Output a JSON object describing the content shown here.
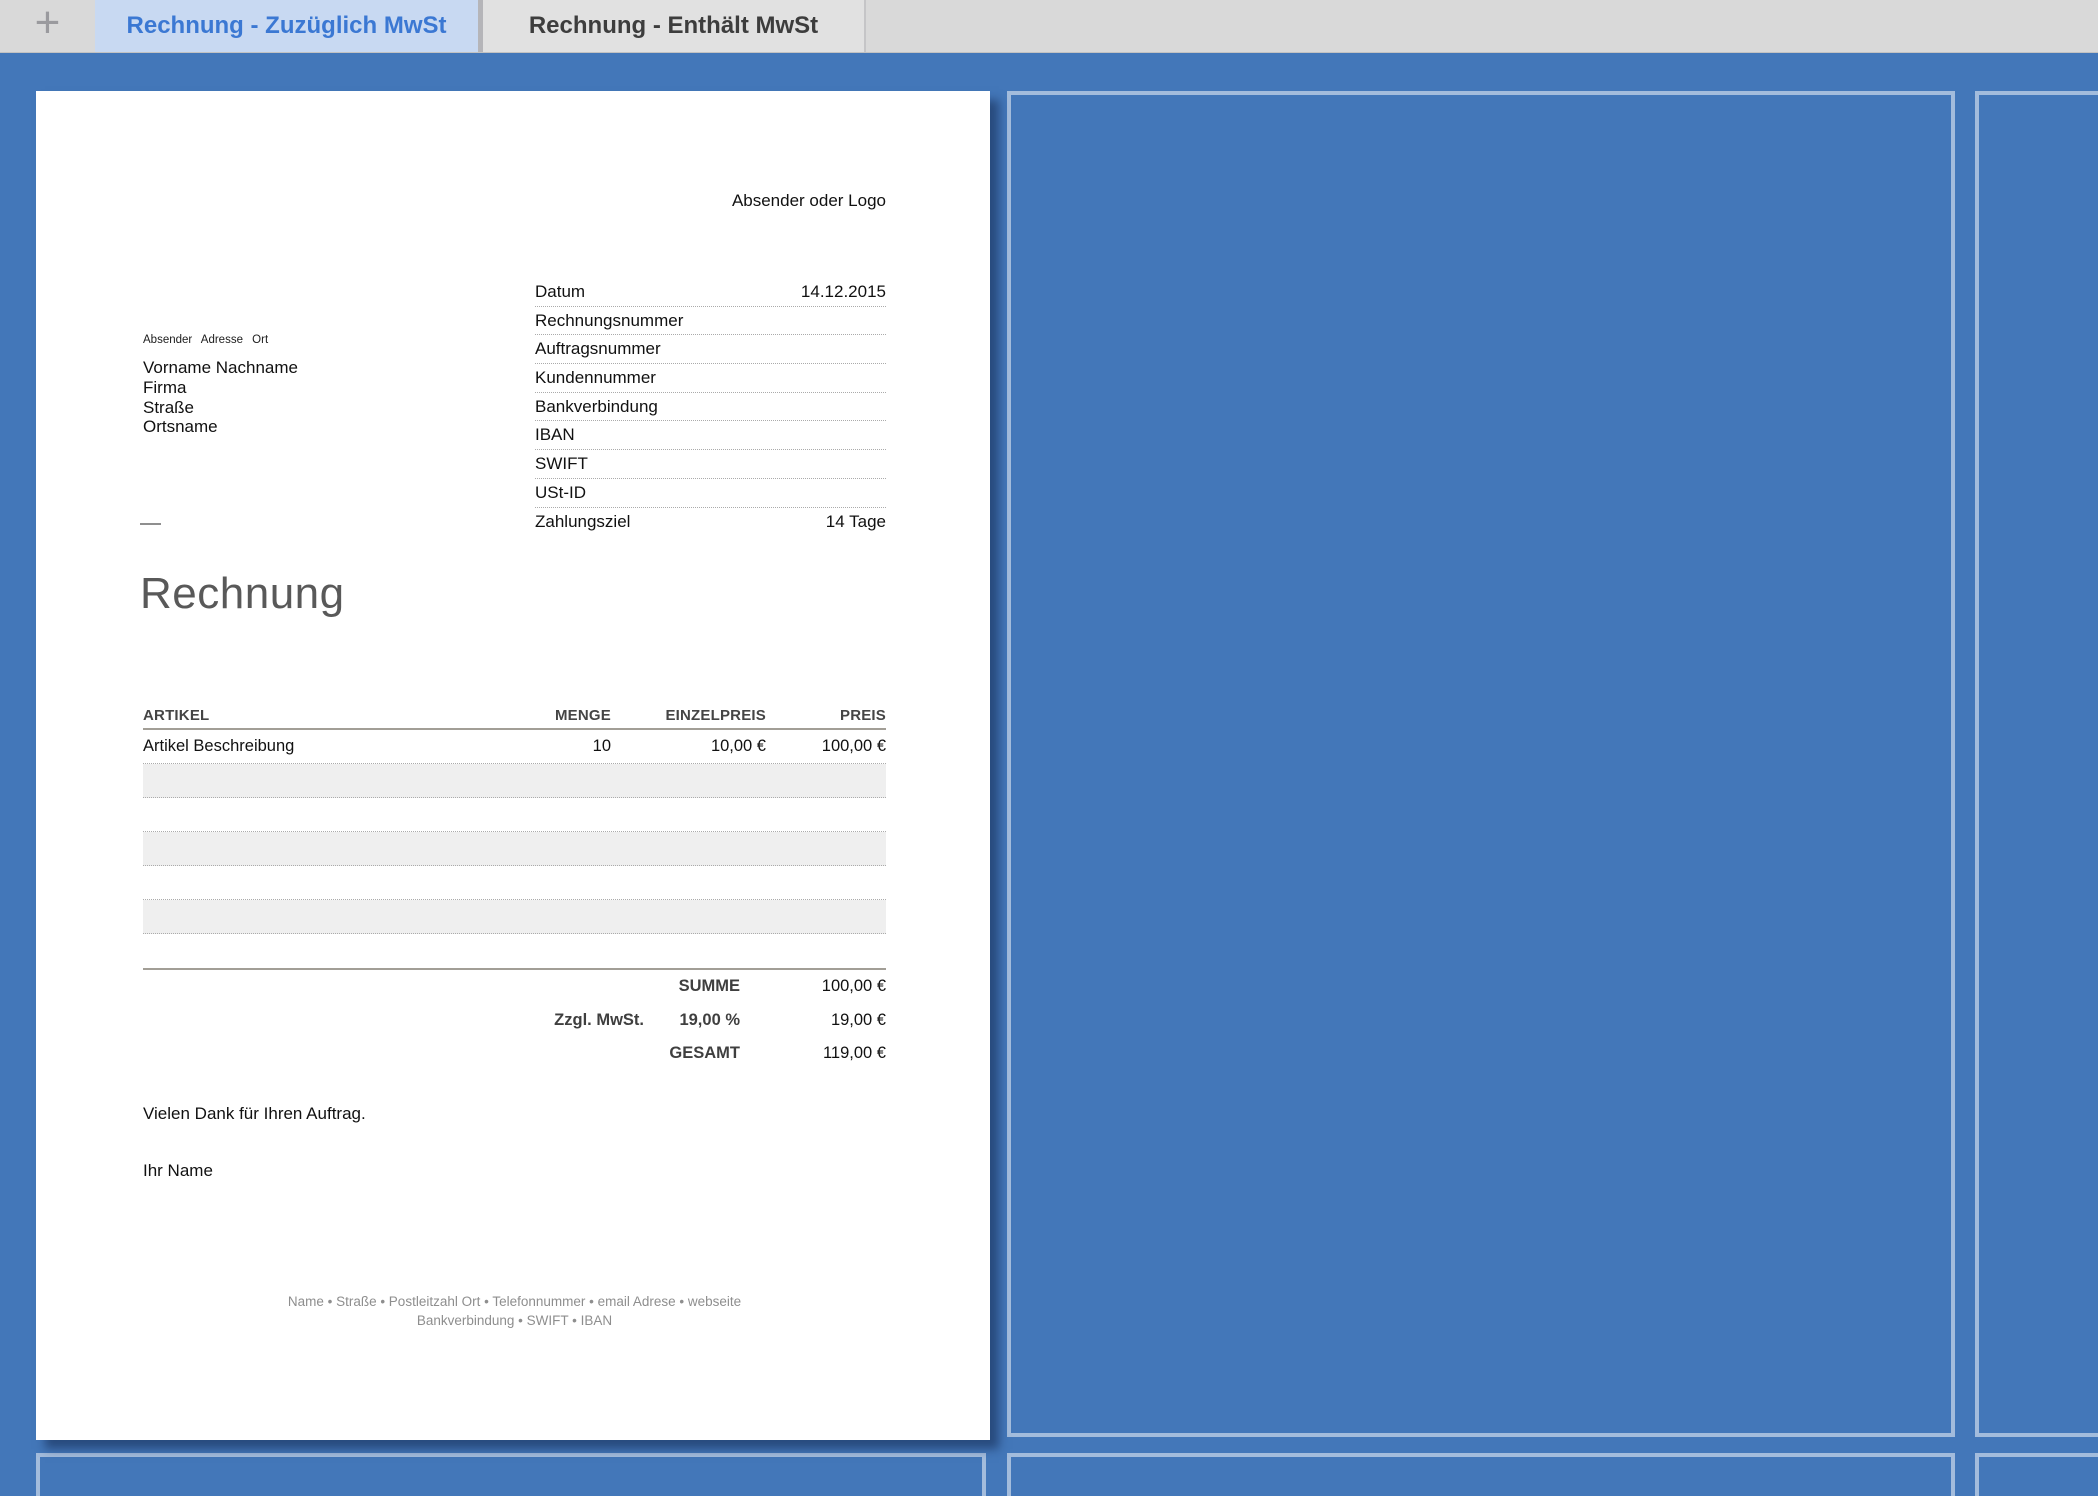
{
  "tab_bar": {
    "new_tab_label": "+",
    "tabs": [
      {
        "label": "Rechnung - Zuzüglich MwSt",
        "active": true
      },
      {
        "label": "Rechnung - Enthält MwSt",
        "active": false
      }
    ]
  },
  "colors": {
    "canvas_blue": "#4377b9",
    "panel_border": "#a3bcdc",
    "active_tab_bg": "#c8d9f2",
    "active_tab_text": "#3b78d3",
    "alt_row_gray": "#efefef"
  },
  "page": {
    "logo_placeholder": "Absender oder Logo",
    "sender_line": "Absender Adresse Ort",
    "recipient": [
      "Vorname Nachname",
      "Firma",
      "Straße",
      "Ortsname"
    ],
    "title": "Rechnung",
    "meta_fields": [
      {
        "label": "Datum",
        "value": "14.12.2015"
      },
      {
        "label": "Rechnungsnummer",
        "value": ""
      },
      {
        "label": "Auftragsnummer",
        "value": ""
      },
      {
        "label": "Kundennummer",
        "value": ""
      },
      {
        "label": "Bankverbindung",
        "value": ""
      },
      {
        "label": "IBAN",
        "value": ""
      },
      {
        "label": "SWIFT",
        "value": ""
      },
      {
        "label": "USt-ID",
        "value": ""
      },
      {
        "label": "Zahlungsziel",
        "value": "14 Tage"
      }
    ],
    "items_table": {
      "headers": [
        "ARTIKEL",
        "MENGE",
        "EINZELPREIS",
        "PREIS"
      ],
      "rows": [
        {
          "artikel": "Artikel Beschreibung",
          "menge": "10",
          "einzelpreis": "10,00 €",
          "preis": "100,00 €"
        }
      ]
    },
    "summary": [
      {
        "label": "",
        "mid": "SUMME",
        "value": "100,00 €"
      },
      {
        "label": "Zzgl. MwSt.",
        "mid": "19,00 %",
        "value": "19,00 €"
      },
      {
        "label": "",
        "mid": "GESAMT",
        "value": "119,00 €"
      }
    ],
    "closing": "Vielen Dank für Ihren Auftrag.",
    "signature": "Ihr Name",
    "footer_lines": [
      "Name • Straße • Postleitzahl Ort • Telefonnummer • email Adrese • webseite",
      "Bankverbindung • SWIFT • IBAN"
    ]
  }
}
